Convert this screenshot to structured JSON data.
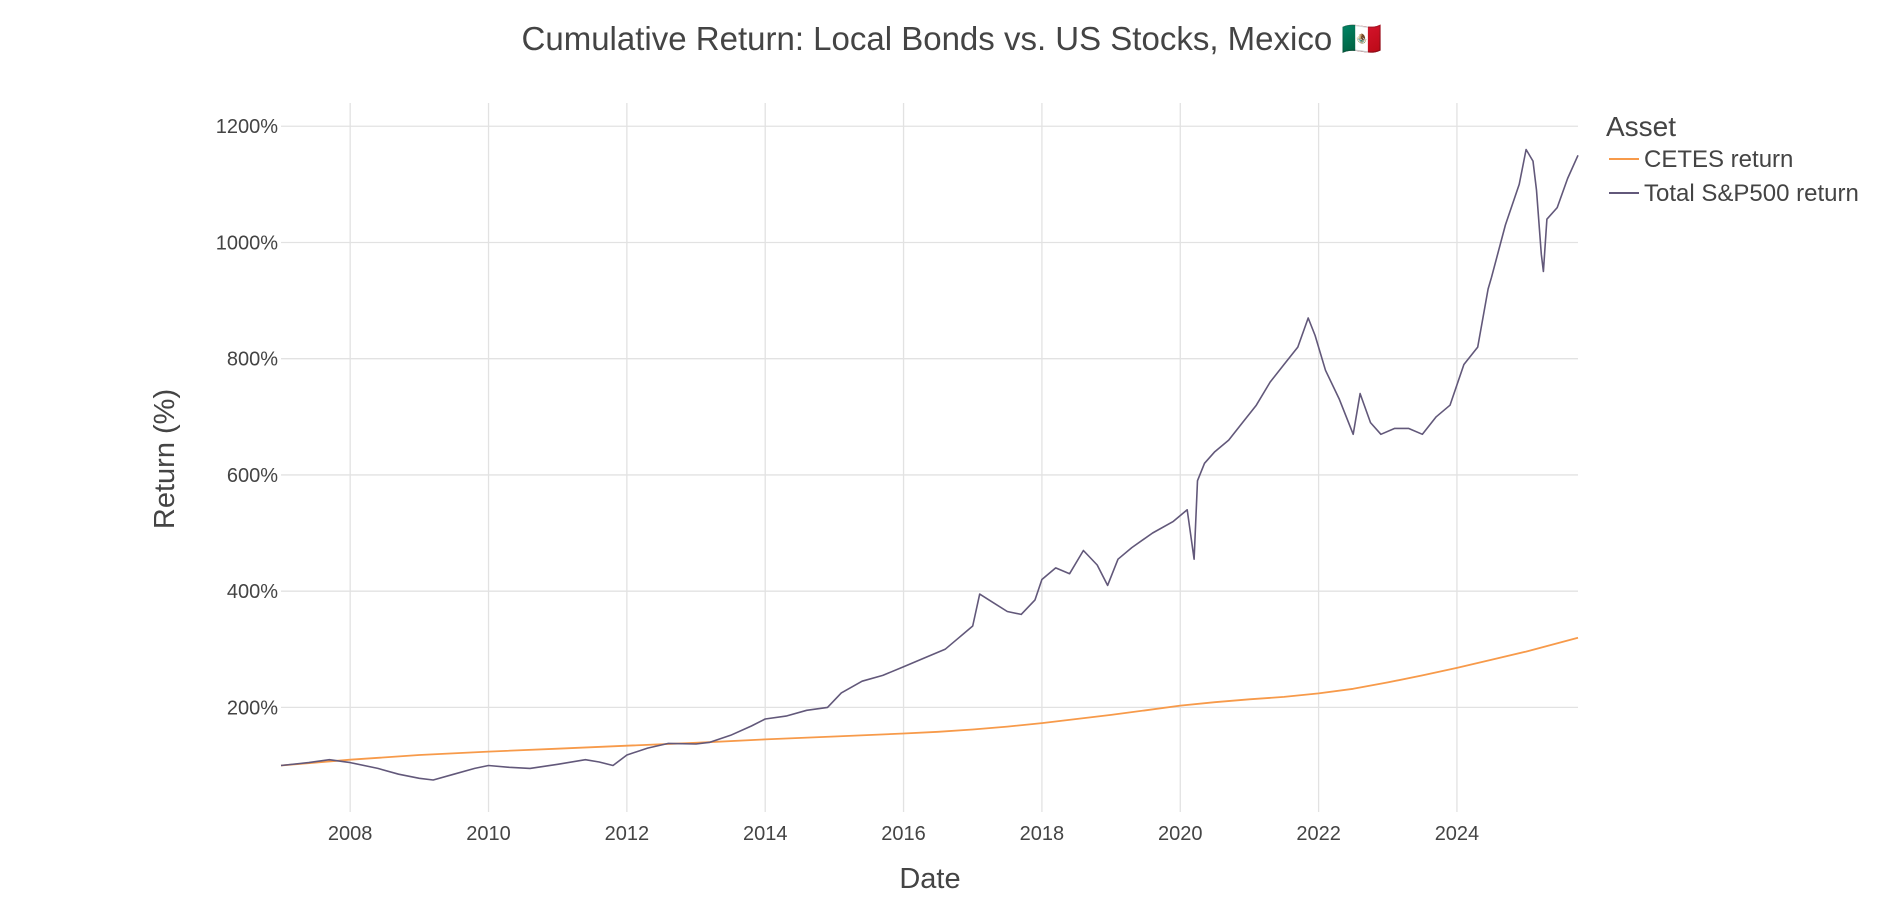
{
  "chart_data": {
    "type": "line",
    "title": "Cumulative Return: Local Bonds vs. US Stocks, Mexico 🇲🇽",
    "xlabel": "Date",
    "ylabel": "Return (%)",
    "xlim": [
      2007.0,
      2025.75
    ],
    "ylim": [
      20,
      1240
    ],
    "x_ticks": [
      2008,
      2010,
      2012,
      2014,
      2016,
      2018,
      2020,
      2022,
      2024
    ],
    "x_tick_labels": [
      "2008",
      "2010",
      "2012",
      "2014",
      "2016",
      "2018",
      "2020",
      "2022",
      "2024"
    ],
    "y_ticks": [
      200,
      400,
      600,
      800,
      1000,
      1200
    ],
    "y_tick_labels": [
      "200%",
      "400%",
      "600%",
      "800%",
      "1000%",
      "1200%"
    ],
    "grid": true,
    "legend": {
      "title": "Asset",
      "position": "top-right"
    },
    "series": [
      {
        "name": "CETES return",
        "color": "#f79a4a",
        "x": [
          2007.0,
          2008.0,
          2009.0,
          2010.0,
          2011.0,
          2012.0,
          2013.0,
          2014.0,
          2015.0,
          2016.0,
          2016.5,
          2017.0,
          2017.5,
          2018.0,
          2018.5,
          2019.0,
          2019.5,
          2020.0,
          2020.5,
          2021.0,
          2021.5,
          2022.0,
          2022.5,
          2023.0,
          2023.5,
          2024.0,
          2024.5,
          2025.0,
          2025.75
        ],
        "values": [
          100,
          110,
          118,
          124,
          129,
          134,
          139,
          145,
          150,
          155,
          158,
          162,
          167,
          173,
          180,
          187,
          195,
          203,
          209,
          214,
          218,
          224,
          232,
          243,
          255,
          268,
          282,
          296,
          320
        ]
      },
      {
        "name": "Total S&P500 return",
        "color": "#62587a",
        "x": [
          2007.0,
          2007.4,
          2007.7,
          2008.0,
          2008.4,
          2008.7,
          2009.0,
          2009.2,
          2009.5,
          2009.8,
          2010.0,
          2010.3,
          2010.6,
          2011.0,
          2011.4,
          2011.6,
          2011.8,
          2012.0,
          2012.3,
          2012.6,
          2013.0,
          2013.2,
          2013.5,
          2013.8,
          2014.0,
          2014.3,
          2014.6,
          2014.9,
          2015.1,
          2015.4,
          2015.7,
          2016.0,
          2016.3,
          2016.6,
          2016.8,
          2017.0,
          2017.1,
          2017.3,
          2017.5,
          2017.7,
          2017.9,
          2018.0,
          2018.2,
          2018.4,
          2018.6,
          2018.8,
          2018.95,
          2019.1,
          2019.3,
          2019.6,
          2019.9,
          2020.1,
          2020.2,
          2020.25,
          2020.35,
          2020.5,
          2020.7,
          2020.9,
          2021.1,
          2021.3,
          2021.5,
          2021.7,
          2021.85,
          2021.95,
          2022.1,
          2022.3,
          2022.5,
          2022.6,
          2022.75,
          2022.9,
          2023.1,
          2023.3,
          2023.5,
          2023.7,
          2023.9,
          2024.1,
          2024.3,
          2024.45,
          2024.5,
          2024.7,
          2024.9,
          2025.0,
          2025.1,
          2025.15,
          2025.22,
          2025.25,
          2025.3,
          2025.45,
          2025.6,
          2025.75
        ],
        "values": [
          100,
          105,
          110,
          105,
          95,
          85,
          78,
          75,
          85,
          95,
          100,
          97,
          95,
          102,
          110,
          106,
          100,
          118,
          130,
          138,
          137,
          140,
          152,
          168,
          180,
          185,
          195,
          200,
          225,
          245,
          255,
          270,
          285,
          300,
          320,
          340,
          395,
          380,
          365,
          360,
          385,
          420,
          440,
          430,
          470,
          445,
          410,
          455,
          475,
          500,
          520,
          540,
          455,
          590,
          620,
          640,
          660,
          690,
          720,
          760,
          790,
          820,
          870,
          840,
          780,
          730,
          670,
          740,
          690,
          670,
          680,
          680,
          670,
          700,
          720,
          790,
          820,
          920,
          940,
          1030,
          1100,
          1160,
          1140,
          1090,
          980,
          950,
          1040,
          1060,
          1110,
          1150
        ]
      }
    ]
  }
}
